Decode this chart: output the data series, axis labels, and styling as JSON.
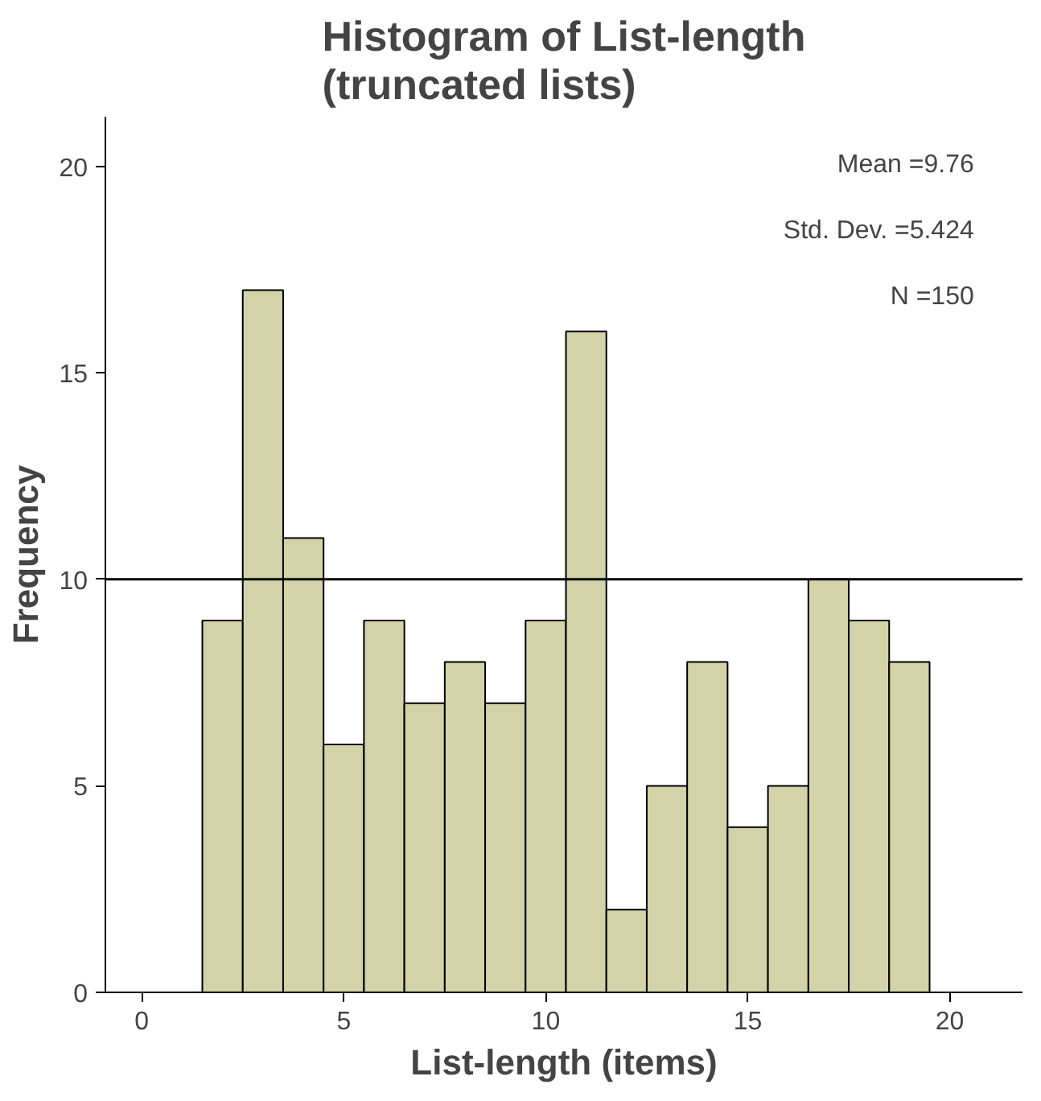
{
  "chart_data": {
    "type": "histogram",
    "title": "Histogram of List-length\n(truncated lists)",
    "xlabel": "List-length (items)",
    "ylabel": "Frequency",
    "bins": [
      1.5,
      2.5,
      3.5,
      4.5,
      5.5,
      6.5,
      7.5,
      8.5,
      9.5,
      10.5,
      11.5,
      12.5,
      13.5,
      14.5,
      15.5,
      16.5,
      17.5,
      18.5,
      19.5
    ],
    "values": [
      9,
      17,
      11,
      6,
      9,
      7,
      8,
      7,
      9,
      16,
      2,
      5,
      8,
      4,
      5,
      10,
      9,
      8
    ],
    "color": "#d3d3aa",
    "xlim": [
      -0.9,
      21.8
    ],
    "xticks": [
      0,
      5,
      10,
      15,
      20
    ],
    "ylim": [
      0,
      21.2
    ],
    "yticks": [
      0,
      5,
      10,
      15,
      20
    ],
    "ref_lines": [
      {
        "axis": "y",
        "value": 10,
        "label": null,
        "color": "#000000"
      }
    ],
    "annotations": [
      "Mean =9.76",
      "Std. Dev. =5.424",
      "N =150"
    ],
    "grid": false
  }
}
